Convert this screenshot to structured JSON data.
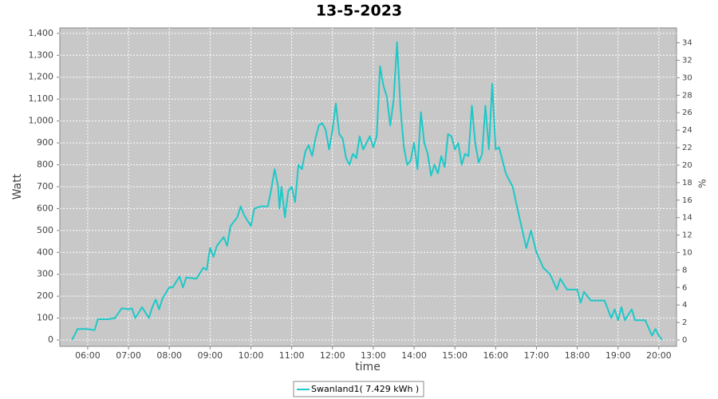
{
  "chart_data": {
    "type": "line",
    "title": "13-5-2023",
    "x_label": "time",
    "y_label": "Watt",
    "y2_label": "%",
    "x": [
      "05:37",
      "05:45",
      "06:00",
      "06:10",
      "06:15",
      "06:30",
      "06:40",
      "06:50",
      "07:00",
      "07:05",
      "07:10",
      "07:20",
      "07:30",
      "07:35",
      "07:40",
      "07:45",
      "07:50",
      "08:00",
      "08:05",
      "08:15",
      "08:20",
      "08:25",
      "08:40",
      "08:50",
      "08:55",
      "09:00",
      "09:05",
      "09:10",
      "09:20",
      "09:25",
      "09:30",
      "09:40",
      "09:45",
      "09:50",
      "10:00",
      "10:05",
      "10:15",
      "10:25",
      "10:30",
      "10:35",
      "10:40",
      "10:42",
      "10:45",
      "10:50",
      "10:55",
      "11:00",
      "11:05",
      "11:10",
      "11:15",
      "11:20",
      "11:25",
      "11:30",
      "11:35",
      "11:40",
      "11:45",
      "11:50",
      "11:55",
      "12:00",
      "12:05",
      "12:10",
      "12:15",
      "12:20",
      "12:25",
      "12:30",
      "12:35",
      "12:40",
      "12:45",
      "12:50",
      "12:55",
      "13:00",
      "13:05",
      "13:10",
      "13:15",
      "13:20",
      "13:25",
      "13:30",
      "13:35",
      "13:40",
      "13:45",
      "13:50",
      "13:55",
      "14:00",
      "14:05",
      "14:10",
      "14:15",
      "14:20",
      "14:25",
      "14:30",
      "14:35",
      "14:40",
      "14:45",
      "14:50",
      "14:55",
      "15:00",
      "15:05",
      "15:10",
      "15:15",
      "15:20",
      "15:25",
      "15:30",
      "15:35",
      "15:40",
      "15:45",
      "15:50",
      "15:55",
      "16:00",
      "16:05",
      "16:15",
      "16:25",
      "16:35",
      "16:45",
      "16:52",
      "17:00",
      "17:10",
      "17:20",
      "17:30",
      "17:35",
      "17:45",
      "18:00",
      "18:05",
      "18:10",
      "18:20",
      "18:30",
      "18:40",
      "18:50",
      "18:55",
      "19:00",
      "19:05",
      "19:10",
      "19:20",
      "19:25",
      "19:40",
      "19:50",
      "19:55",
      "20:00",
      "20:05"
    ],
    "series": [
      {
        "name": "Swanland1( 7.429 kWh )",
        "color": "#1ec8c8",
        "values": [
          0,
          50,
          50,
          45,
          95,
          95,
          100,
          145,
          140,
          145,
          100,
          150,
          100,
          150,
          185,
          140,
          190,
          240,
          240,
          290,
          240,
          285,
          280,
          330,
          320,
          420,
          380,
          430,
          470,
          430,
          520,
          560,
          610,
          570,
          520,
          600,
          610,
          610,
          690,
          780,
          700,
          600,
          700,
          560,
          680,
          700,
          630,
          800,
          780,
          860,
          890,
          840,
          920,
          980,
          990,
          960,
          870,
          960,
          1080,
          940,
          920,
          830,
          800,
          850,
          830,
          930,
          870,
          900,
          930,
          880,
          930,
          1250,
          1160,
          1110,
          980,
          1100,
          1360,
          1060,
          880,
          800,
          820,
          900,
          780,
          1040,
          900,
          850,
          750,
          800,
          760,
          840,
          790,
          940,
          930,
          870,
          900,
          800,
          850,
          840,
          1070,
          900,
          810,
          850,
          1070,
          870,
          1170,
          870,
          880,
          760,
          700,
          560,
          420,
          500,
          400,
          330,
          300,
          230,
          280,
          230,
          230,
          170,
          220,
          180,
          180,
          180,
          100,
          140,
          90,
          150,
          90,
          140,
          90,
          90,
          20,
          50,
          20,
          0
        ]
      }
    ],
    "xlim": [
      "05:19",
      "20:26"
    ],
    "xticks": [
      "06:00",
      "07:00",
      "08:00",
      "09:00",
      "10:00",
      "11:00",
      "12:00",
      "13:00",
      "14:00",
      "15:00",
      "16:00",
      "17:00",
      "18:00",
      "19:00",
      "20:00"
    ],
    "ylim": [
      -29,
      1425
    ],
    "yticks": [
      0,
      100,
      200,
      300,
      400,
      500,
      600,
      700,
      800,
      900,
      {
        "value": 1000,
        "label": "1,000"
      },
      {
        "value": 1100,
        "label": "1,100"
      },
      {
        "value": 1200,
        "label": "1,200"
      },
      {
        "value": 1300,
        "label": "1,300"
      },
      {
        "value": 1400,
        "label": "1,400"
      }
    ],
    "y2lim": [
      -0.73,
      35.7
    ],
    "y2ticks": [
      0,
      2,
      4,
      6,
      8,
      10,
      12,
      14,
      16,
      18,
      20,
      22,
      24,
      26,
      28,
      30,
      32,
      34
    ],
    "grid": true
  }
}
